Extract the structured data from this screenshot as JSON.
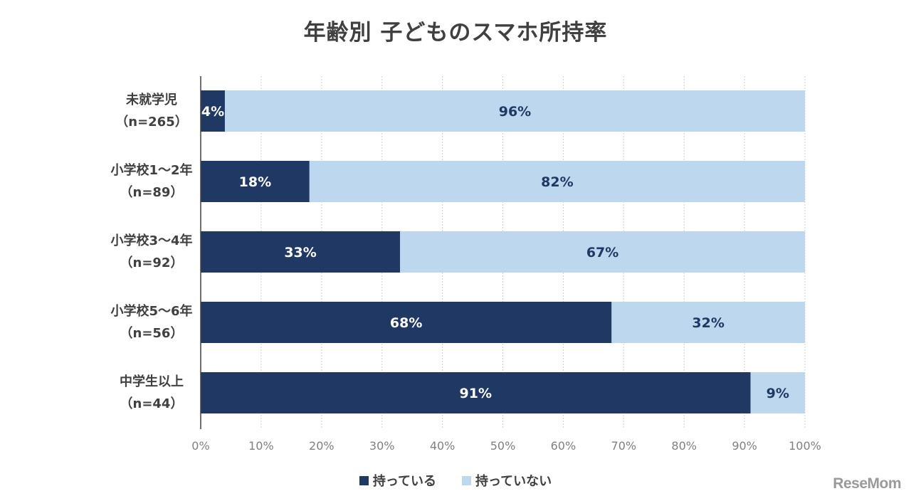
{
  "title": "年齢別 子どものスマホ所持率",
  "legend": [
    {
      "label": "持っている",
      "color": "#203864"
    },
    {
      "label": "持っていない",
      "color": "#BDD7EE"
    }
  ],
  "logo": "ReseMom",
  "chart_data": {
    "type": "bar",
    "orientation": "horizontal",
    "stacked": true,
    "title": "年齢別 子どものスマホ所持率",
    "categories": [
      {
        "label": "未就学児",
        "sub": "（n=265）"
      },
      {
        "label": "小学校1〜2年",
        "sub": "（n=89）"
      },
      {
        "label": "小学校3〜4年",
        "sub": "（n=92）"
      },
      {
        "label": "小学校5〜6年",
        "sub": "（n=56）"
      },
      {
        "label": "中学生以上",
        "sub": "（n=44）"
      }
    ],
    "series": [
      {
        "name": "持っている",
        "color": "#203864",
        "label_color": "#ffffff",
        "values": [
          4,
          18,
          33,
          68,
          91
        ],
        "labels": [
          "4%",
          "18%",
          "33%",
          "68%",
          "91%"
        ]
      },
      {
        "name": "持っていない",
        "color": "#BDD7EE",
        "label_color": "#203864",
        "values": [
          96,
          82,
          67,
          32,
          9
        ],
        "labels": [
          "96%",
          "82%",
          "67%",
          "32%",
          "9%"
        ]
      }
    ],
    "xlim": [
      0,
      100
    ],
    "xticks": [
      "0%",
      "10%",
      "20%",
      "30%",
      "40%",
      "50%",
      "60%",
      "70%",
      "80%",
      "90%",
      "100%"
    ],
    "grid": true,
    "legend_position": "bottom"
  }
}
